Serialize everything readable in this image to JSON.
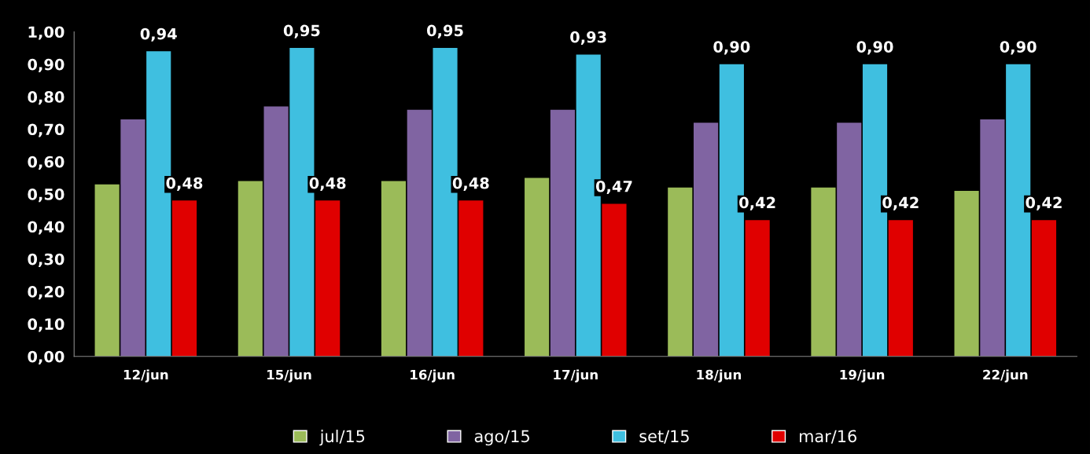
{
  "chart_data": {
    "type": "bar",
    "categories": [
      "12/jun",
      "15/jun",
      "16/jun",
      "17/jun",
      "18/jun",
      "19/jun",
      "22/jun"
    ],
    "series": [
      {
        "name": "jul/15",
        "color": "#9bbb59",
        "values": [
          0.53,
          0.54,
          0.54,
          0.55,
          0.52,
          0.52,
          0.51
        ]
      },
      {
        "name": "ago/15",
        "color": "#8064a2",
        "values": [
          0.73,
          0.77,
          0.76,
          0.76,
          0.72,
          0.72,
          0.73
        ]
      },
      {
        "name": "set/15",
        "color": "#3fbfe0",
        "values": [
          0.94,
          0.95,
          0.95,
          0.93,
          0.9,
          0.9,
          0.9
        ],
        "value_labels": [
          "0,94",
          "0,95",
          "0,95",
          "0,93",
          "0,90",
          "0,90",
          "0,90"
        ]
      },
      {
        "name": "mar/16",
        "color": "#e00000",
        "values": [
          0.48,
          0.48,
          0.48,
          0.47,
          0.42,
          0.42,
          0.42
        ],
        "value_labels": [
          "0,48",
          "0,48",
          "0,48",
          "0,47",
          "0,42",
          "0,42",
          "0,42"
        ]
      }
    ],
    "ylim": [
      0,
      1
    ],
    "yticks": [
      {
        "value": 0,
        "label": "0,00"
      },
      {
        "value": 0.1,
        "label": "0,10"
      },
      {
        "value": 0.2,
        "label": "0,20"
      },
      {
        "value": 0.3,
        "label": "0,30"
      },
      {
        "value": 0.4,
        "label": "0,40"
      },
      {
        "value": 0.5,
        "label": "0,50"
      },
      {
        "value": 0.6,
        "label": "0,60"
      },
      {
        "value": 0.7,
        "label": "0,70"
      },
      {
        "value": 0.8,
        "label": "0,80"
      },
      {
        "value": 0.9,
        "label": "0,90"
      },
      {
        "value": 1,
        "label": "1,00"
      }
    ],
    "grid": false,
    "legend": "bottom"
  }
}
